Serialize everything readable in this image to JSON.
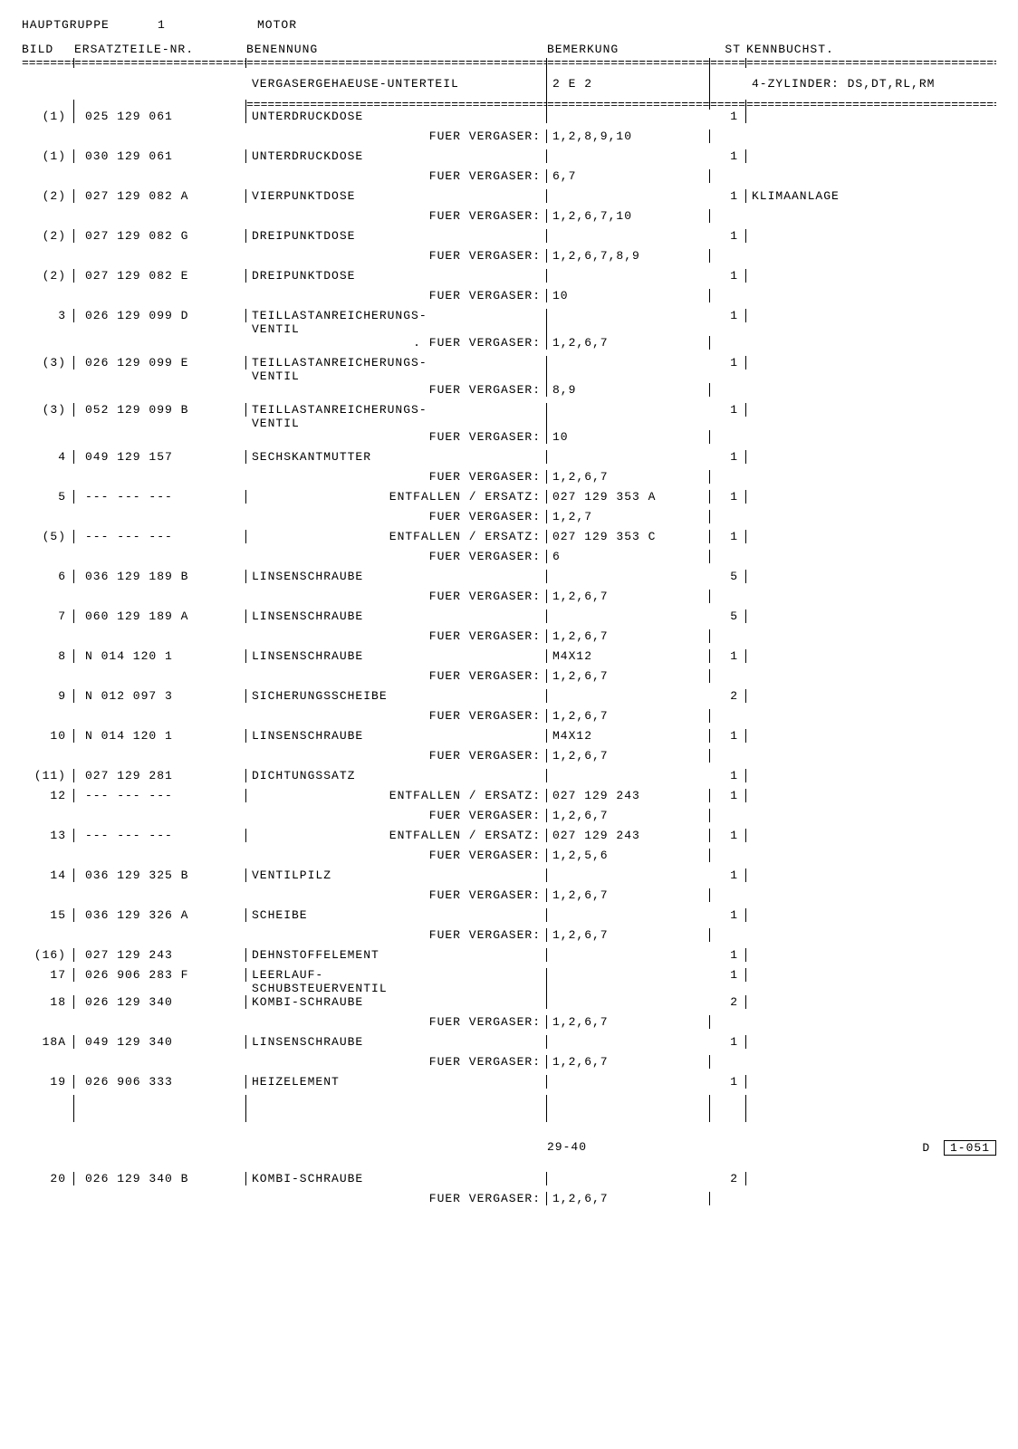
{
  "header": {
    "group_label": "HAUPTGRUPPE",
    "group_num": "1",
    "title": "MOTOR"
  },
  "columns": {
    "bild": "BILD",
    "nr": "ERSATZTEILE-NR.",
    "ben": "BENENNUNG",
    "bem": "BEMERKUNG",
    "st": "ST",
    "kb": "KENNBUCHST."
  },
  "divider": "============================================",
  "section": {
    "title": "VERGASERGEHAEUSE-UNTERTEIL",
    "bem": "2 E 2",
    "kb": "4-ZYLINDER: DS,DT,RL,RM"
  },
  "rows": [
    {
      "bild": "(1)",
      "nr": "025 129 061",
      "ben": "UNTERDRUCKDOSE",
      "bem": "",
      "st": "1",
      "kb": "",
      "sub": {
        "ben": "FUER VERGASER:",
        "bem": "1,2,8,9,10"
      }
    },
    {
      "bild": "(1)",
      "nr": "030 129 061",
      "ben": "UNTERDRUCKDOSE",
      "bem": "",
      "st": "1",
      "kb": "",
      "sub": {
        "ben": "FUER VERGASER:",
        "bem": "6,7"
      }
    },
    {
      "bild": "(2)",
      "nr": "027 129 082 A",
      "ben": "VIERPUNKTDOSE",
      "bem": "",
      "st": "1",
      "kb": "KLIMAANLAGE",
      "sub": {
        "ben": "FUER VERGASER:",
        "bem": "1,2,6,7,10"
      }
    },
    {
      "bild": "(2)",
      "nr": "027 129 082 G",
      "ben": "DREIPUNKTDOSE",
      "bem": "",
      "st": "1",
      "kb": "",
      "sub": {
        "ben": "FUER VERGASER:",
        "bem": "1,2,6,7,8,9"
      }
    },
    {
      "bild": "(2)",
      "nr": "027 129 082 E",
      "ben": "DREIPUNKTDOSE",
      "bem": "",
      "st": "1",
      "kb": "",
      "sub": {
        "ben": "FUER VERGASER:",
        "bem": "10"
      }
    },
    {
      "bild": "3",
      "nr": "026 129 099 D",
      "ben": "TEILLASTANREICHERUNGS-\nVENTIL",
      "bem": "",
      "st": "1",
      "kb": "",
      "sub": {
        "ben": ". FUER VERGASER:",
        "bem": "1,2,6,7"
      }
    },
    {
      "bild": "(3)",
      "nr": "026 129 099 E",
      "ben": "TEILLASTANREICHERUNGS-\nVENTIL",
      "bem": "",
      "st": "1",
      "kb": "",
      "sub": {
        "ben": "FUER VERGASER:",
        "bem": "8,9"
      }
    },
    {
      "bild": "(3)",
      "nr": "052 129 099 B",
      "ben": "TEILLASTANREICHERUNGS-\nVENTIL",
      "bem": "",
      "st": "1",
      "kb": "",
      "sub": {
        "ben": "FUER VERGASER:",
        "bem": "10"
      }
    },
    {
      "bild": "4",
      "nr": "049 129 157",
      "ben": "SECHSKANTMUTTER",
      "bem": "",
      "st": "1",
      "kb": "",
      "sub": {
        "ben": "FUER VERGASER:",
        "bem": "1,2,6,7"
      }
    },
    {
      "bild": "5",
      "nr": "--- --- ---",
      "ben": "",
      "bem": "",
      "st": "1",
      "kb": "",
      "sub_top": {
        "ben": "ENTFALLEN / ERSATZ:",
        "bem": "027 129 353 A"
      },
      "sub": {
        "ben": "FUER VERGASER:",
        "bem": "1,2,7"
      }
    },
    {
      "bild": "(5)",
      "nr": "--- --- ---",
      "ben": "",
      "bem": "",
      "st": "1",
      "kb": "",
      "sub_top": {
        "ben": "ENTFALLEN / ERSATZ:",
        "bem": "027 129 353 C"
      },
      "sub": {
        "ben": "FUER VERGASER:",
        "bem": "6"
      }
    },
    {
      "bild": "6",
      "nr": "036 129 189 B",
      "ben": "LINSENSCHRAUBE",
      "bem": "",
      "st": "5",
      "kb": "",
      "sub": {
        "ben": "FUER VERGASER:",
        "bem": "1,2,6,7"
      }
    },
    {
      "bild": "7",
      "nr": "060 129 189 A",
      "ben": "LINSENSCHRAUBE",
      "bem": "",
      "st": "5",
      "kb": "",
      "sub": {
        "ben": "FUER VERGASER:",
        "bem": "1,2,6,7"
      }
    },
    {
      "bild": "8",
      "nr": "N   014 120 1",
      "ben": "LINSENSCHRAUBE",
      "bem": "M4X12",
      "st": "1",
      "kb": "",
      "sub": {
        "ben": "FUER VERGASER:",
        "bem": "1,2,6,7"
      }
    },
    {
      "bild": "9",
      "nr": "N   012 097 3",
      "ben": "SICHERUNGSSCHEIBE",
      "bem": "",
      "st": "2",
      "kb": "",
      "sub": {
        "ben": "FUER VERGASER:",
        "bem": "1,2,6,7"
      }
    },
    {
      "bild": "10",
      "nr": "N   014 120 1",
      "ben": "LINSENSCHRAUBE",
      "bem": "M4X12",
      "st": "1",
      "kb": "",
      "sub": {
        "ben": "FUER VERGASER:",
        "bem": "1,2,6,7"
      }
    },
    {
      "bild": "(11)",
      "nr": "027 129 281",
      "ben": "DICHTUNGSSATZ",
      "bem": "",
      "st": "1",
      "kb": ""
    },
    {
      "bild": "12",
      "nr": "--- --- ---",
      "ben": "",
      "bem": "",
      "st": "1",
      "kb": "",
      "sub_top": {
        "ben": "ENTFALLEN / ERSATZ:",
        "bem": "027 129 243"
      },
      "sub": {
        "ben": "FUER VERGASER:",
        "bem": "1,2,6,7"
      }
    },
    {
      "bild": "13",
      "nr": "--- --- ---",
      "ben": "",
      "bem": "",
      "st": "1",
      "kb": "",
      "sub_top": {
        "ben": "ENTFALLEN / ERSATZ:",
        "bem": "027 129 243"
      },
      "sub": {
        "ben": "FUER VERGASER:",
        "bem": "1,2,5,6"
      }
    },
    {
      "bild": "14",
      "nr": "036 129 325 B",
      "ben": "VENTILPILZ",
      "bem": "",
      "st": "1",
      "kb": "",
      "sub": {
        "ben": "FUER VERGASER:",
        "bem": "1,2,6,7"
      }
    },
    {
      "bild": "15",
      "nr": "036 129 326 A",
      "ben": "SCHEIBE",
      "bem": "",
      "st": "1",
      "kb": "",
      "sub": {
        "ben": "FUER VERGASER:",
        "bem": "1,2,6,7"
      }
    },
    {
      "bild": "(16)",
      "nr": "027 129 243",
      "ben": "DEHNSTOFFELEMENT",
      "bem": "",
      "st": "1",
      "kb": ""
    },
    {
      "bild": "17",
      "nr": "026 906 283 F",
      "ben": "LEERLAUF-\nSCHUBSTEUERVENTIL",
      "bem": "",
      "st": "1",
      "kb": ""
    },
    {
      "bild": "18",
      "nr": "026 129 340",
      "ben": "KOMBI-SCHRAUBE",
      "bem": "",
      "st": "2",
      "kb": "",
      "sub": {
        "ben": "FUER VERGASER:",
        "bem": "1,2,6,7"
      }
    },
    {
      "bild": "18A",
      "nr": "049 129 340",
      "ben": "LINSENSCHRAUBE",
      "bem": "",
      "st": "1",
      "kb": "",
      "sub": {
        "ben": "FUER VERGASER:",
        "bem": "1,2,6,7"
      }
    },
    {
      "bild": "19",
      "nr": "026 906 333",
      "ben": "HEIZELEMENT",
      "bem": "",
      "st": "1",
      "kb": ""
    }
  ],
  "footer": {
    "page": "29-40",
    "code_prefix": "D",
    "code": "1-051"
  },
  "tail_rows": [
    {
      "bild": "20",
      "nr": "026 129 340 B",
      "ben": "KOMBI-SCHRAUBE",
      "bem": "",
      "st": "2",
      "kb": "",
      "sub": {
        "ben": "FUER VERGASER:",
        "bem": "1,2,6,7"
      }
    }
  ]
}
